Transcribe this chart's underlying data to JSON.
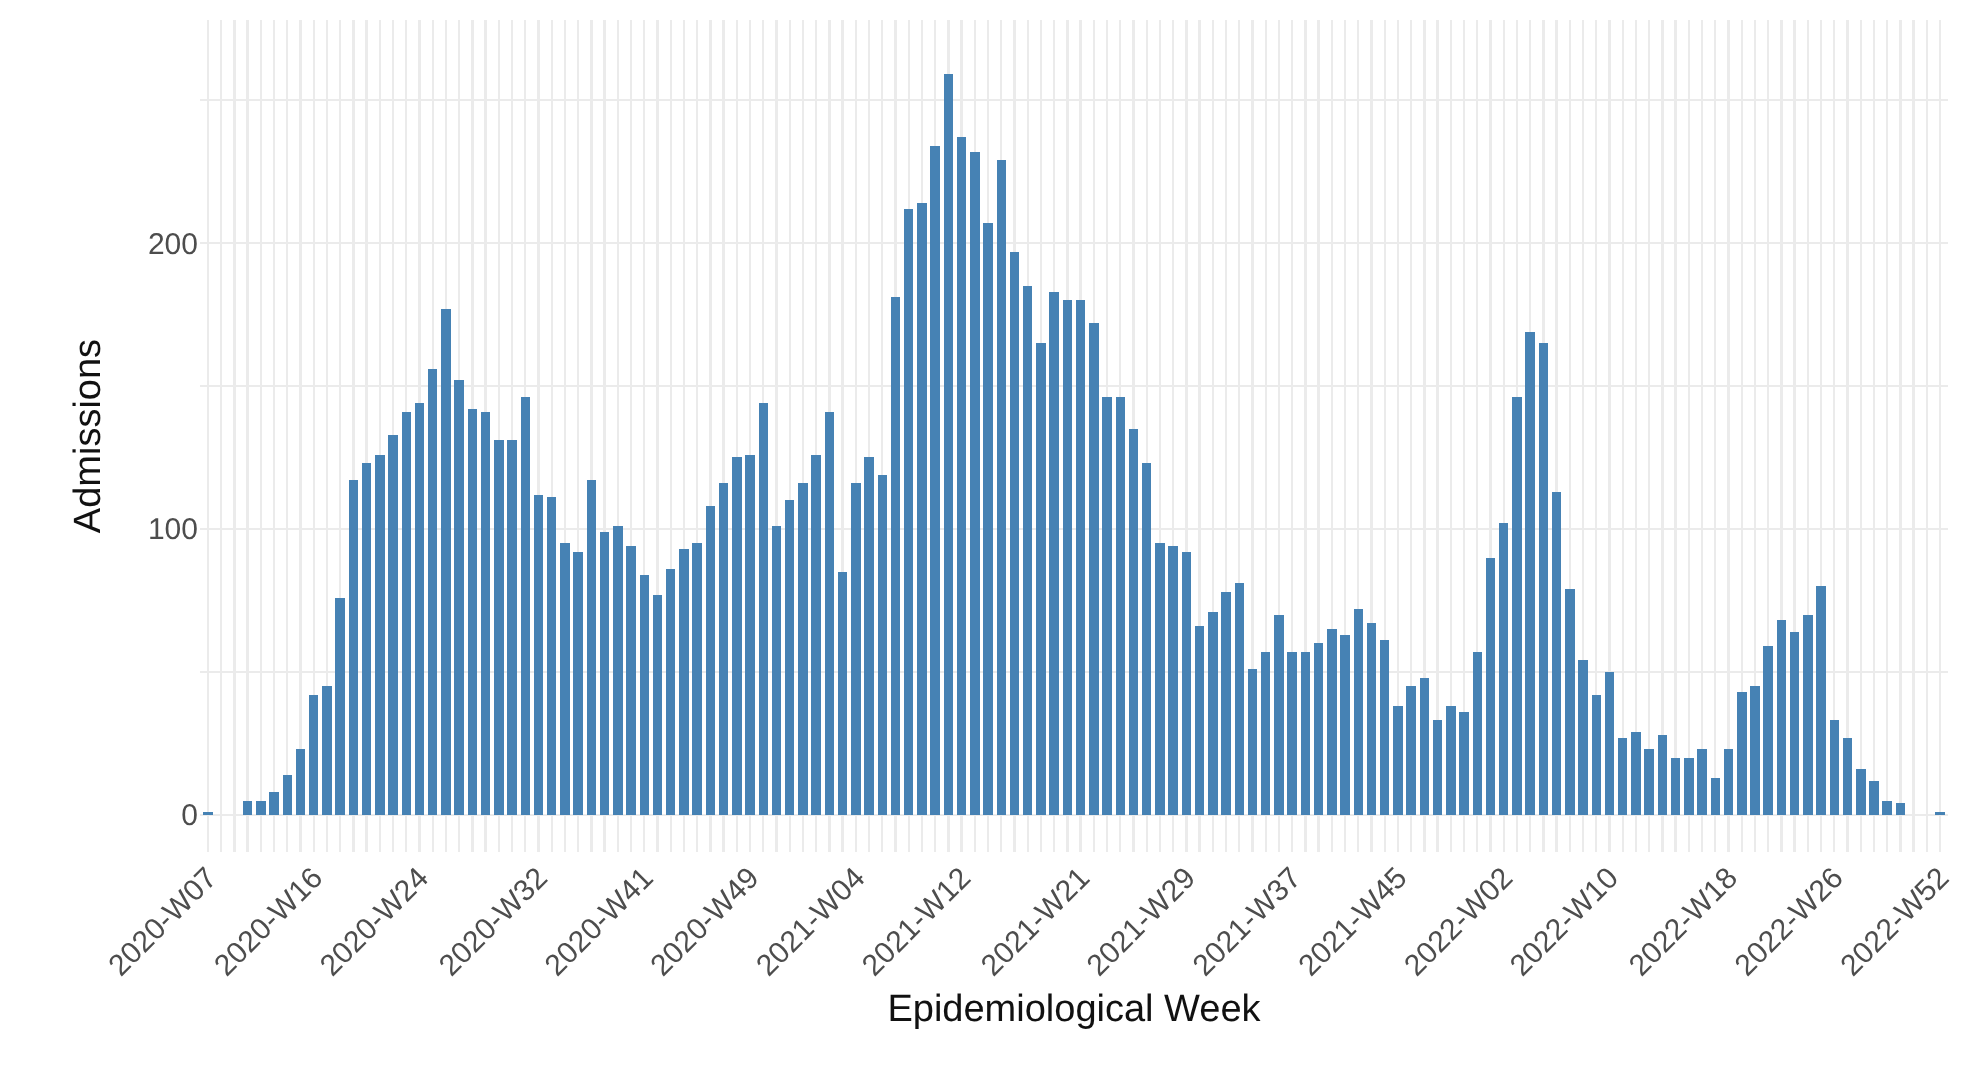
{
  "chart_data": {
    "type": "bar",
    "xlabel": "Epidemiological Week",
    "ylabel": "Admissions",
    "color": "#4682b4",
    "grid": true,
    "categories": [
      "2020-W07",
      null,
      null,
      null,
      null,
      null,
      null,
      null,
      "2020-W16",
      null,
      null,
      null,
      null,
      null,
      null,
      null,
      "2020-W24",
      null,
      null,
      null,
      null,
      null,
      null,
      null,
      null,
      "2020-W32",
      null,
      null,
      null,
      null,
      null,
      null,
      null,
      "2020-W41",
      null,
      null,
      null,
      null,
      null,
      null,
      null,
      "2020-W49",
      null,
      null,
      null,
      null,
      null,
      null,
      null,
      "2021-W04",
      null,
      null,
      null,
      null,
      null,
      null,
      null,
      "2021-W12",
      null,
      null,
      null,
      null,
      null,
      null,
      null,
      null,
      "2021-W21",
      null,
      null,
      null,
      null,
      null,
      null,
      null,
      "2021-W29",
      null,
      null,
      null,
      null,
      null,
      null,
      null,
      "2021-W37",
      null,
      null,
      null,
      null,
      null,
      null,
      null,
      "2021-W45",
      null,
      null,
      null,
      null,
      null,
      null,
      null,
      "2022-W02",
      null,
      null,
      null,
      null,
      null,
      null,
      null,
      "2022-W10",
      null,
      null,
      null,
      null,
      null,
      null,
      null,
      null,
      "2022-W18",
      null,
      null,
      null,
      null,
      null,
      null,
      null,
      "2022-W26",
      null,
      null,
      null,
      null,
      null,
      null,
      null,
      "2022-W52"
    ],
    "values": [
      1,
      null,
      null,
      5,
      5,
      8,
      14,
      23,
      42,
      45,
      76,
      117,
      123,
      126,
      133,
      141,
      144,
      156,
      177,
      152,
      142,
      141,
      131,
      131,
      146,
      112,
      111,
      95,
      92,
      117,
      99,
      101,
      94,
      84,
      77,
      86,
      93,
      95,
      108,
      116,
      125,
      126,
      144,
      101,
      110,
      116,
      126,
      141,
      85,
      116,
      125,
      119,
      181,
      212,
      214,
      234,
      259,
      237,
      232,
      207,
      229,
      197,
      185,
      165,
      183,
      180,
      180,
      172,
      146,
      146,
      135,
      123,
      95,
      94,
      92,
      66,
      71,
      78,
      81,
      51,
      57,
      70,
      57,
      57,
      60,
      65,
      63,
      72,
      67,
      61,
      38,
      45,
      48,
      33,
      38,
      36,
      57,
      90,
      102,
      146,
      169,
      165,
      113,
      79,
      54,
      42,
      50,
      27,
      29,
      23,
      28,
      20,
      20,
      23,
      13,
      23,
      43,
      45,
      59,
      68,
      64,
      70,
      80,
      33,
      27,
      16,
      12,
      5,
      4,
      null,
      null,
      1
    ],
    "ylim": [
      -13,
      278
    ],
    "yticks": [
      0,
      {
        "value": 50,
        "label": null
      },
      100,
      {
        "value": 150,
        "label": null
      },
      200,
      {
        "value": 250,
        "label": null
      }
    ]
  }
}
